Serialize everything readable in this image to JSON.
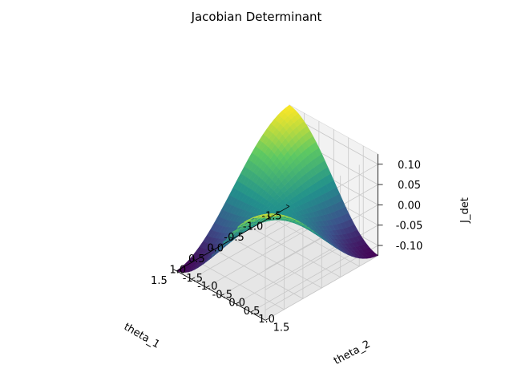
{
  "chart_data": {
    "type": "surface",
    "title": "Jacobian Determinant",
    "xlabel": "theta_1",
    "ylabel": "theta_2",
    "zlabel": "J_det",
    "xlim": [
      -1.5,
      1.5
    ],
    "ylim": [
      -1.5,
      1.5
    ],
    "zlim": [
      -0.125,
      0.125
    ],
    "x_ticks": [
      "-1.5",
      "-1.0",
      "-0.5",
      "0.0",
      "0.5",
      "1.0",
      "1.5"
    ],
    "y_ticks": [
      "-1.5",
      "-1.0",
      "-0.5",
      "0.0",
      "0.5",
      "1.0",
      "1.5"
    ],
    "z_ticks": [
      "-0.10",
      "-0.05",
      "0.00",
      "0.05",
      "0.10"
    ],
    "x_tick_values": [
      -1.5,
      -1.0,
      -0.5,
      0.0,
      0.5,
      1.0,
      1.5
    ],
    "y_tick_values": [
      -1.5,
      -1.0,
      -0.5,
      0.0,
      0.5,
      1.0,
      1.5
    ],
    "z_tick_values": [
      -0.1,
      -0.05,
      0.0,
      0.05,
      0.1
    ],
    "surface": {
      "formula": "J = 0.125 * sin(theta_1) * sin(theta_2)",
      "peak": {
        "theta_1": 1.5,
        "theta_2": 1.5,
        "J": 0.125
      },
      "trough": {
        "theta_1": 1.5,
        "theta_2": -1.5,
        "J": -0.125
      },
      "colormap": "viridis"
    },
    "grid": true,
    "colormap_stops": [
      "#440154",
      "#3b528b",
      "#21918c",
      "#5ec962",
      "#fde725"
    ]
  }
}
